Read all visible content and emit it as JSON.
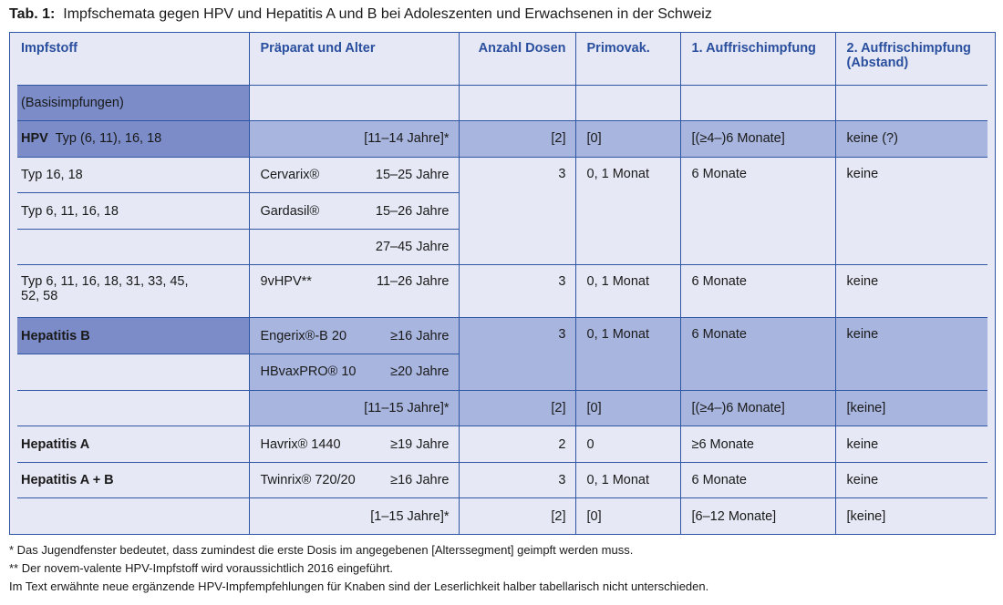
{
  "title": {
    "label": "Tab. 1:",
    "text": "Impfschemata gegen HPV und Hepatitis A und B bei Adoleszenten und Erwachsenen in der Schweiz"
  },
  "header": [
    "Impfstoff",
    "Präparat und Alter",
    "Anzahl Dosen",
    "Primovak.",
    "1. Auffrischimpfung",
    "2. Auffrischimpfung",
    "(Abstand)"
  ],
  "rows": [
    {
      "c0": "(Basisimpfungen)"
    },
    {
      "c0b": "HPV",
      "c0": "Typ (6, 11), 16, 18",
      "age": "[11–14 Jahre]*",
      "doses": "[2]",
      "primo": "[0]",
      "b1": "[(≥4–)6 Monate]",
      "b2": "keine (?)"
    },
    {
      "c0": "Typ 16, 18",
      "prep": "Cervarix®",
      "age": "15–25 Jahre",
      "doses": "3",
      "primo": "0, 1 Monat",
      "b1": "6 Monate",
      "b2": "keine"
    },
    {
      "c0": "Typ 6, 11, 16, 18",
      "prep": "Gardasil®",
      "age": "15–26 Jahre"
    },
    {
      "age": "27–45 Jahre"
    },
    {
      "c0": "Typ 6, 11, 16, 18, 31, 33, 45,",
      "c0l2": "52, 58",
      "prep": "9vHPV**",
      "age": "11–26 Jahre",
      "doses": "3",
      "primo": "0, 1 Monat",
      "b1": "6 Monate",
      "b2": "keine"
    },
    {
      "c0b": "Hepatitis B",
      "prep": "Engerix®-B 20",
      "age": "≥16 Jahre",
      "doses": "3",
      "primo": "0, 1 Monat",
      "b1": "6 Monate",
      "b2": "keine"
    },
    {
      "prep": "HBvaxPRO® 10",
      "age": "≥20 Jahre"
    },
    {
      "age": "[11–15 Jahre]*",
      "doses": "[2]",
      "primo": "[0]",
      "b1": "[(≥4–)6 Monate]",
      "b2": "[keine]"
    },
    {
      "c0b": "Hepatitis A",
      "prep": "Havrix® 1440",
      "age": "≥19 Jahre",
      "doses": "2",
      "primo": "0",
      "b1": "≥6 Monate",
      "b2": "keine"
    },
    {
      "c0b": "Hepatitis A + B",
      "prep": "Twinrix® 720/20",
      "age": "≥16 Jahre",
      "doses": "3",
      "primo": "0, 1 Monat",
      "b1": "6 Monate",
      "b2": "keine"
    },
    {
      "age": "[1–15 Jahre]*",
      "doses": "[2]",
      "primo": "[0]",
      "b1": "[6–12 Monate]",
      "b2": "[keine]"
    }
  ],
  "footnotes": [
    "*   Das Jugendfenster bedeutet, dass zumindest die erste Dosis im angegebenen [Alterssegment] geimpft werden muss.",
    "** Der novem-valente HPV-Impfstoff wird voraussichtlich 2016 eingeführt.",
    "Im Text erwähnte neue ergänzende HPV-Impfempfehlungen für Knaben sind der Leserlichkeit halber tabellarisch nicht unterschieden."
  ],
  "colors": {
    "border": "#2f55a5",
    "header_text": "#2a4f9e",
    "dark_fill": "#7b8cc9",
    "mid_fill": "#a8b5de",
    "background": "#e6e9f5"
  }
}
